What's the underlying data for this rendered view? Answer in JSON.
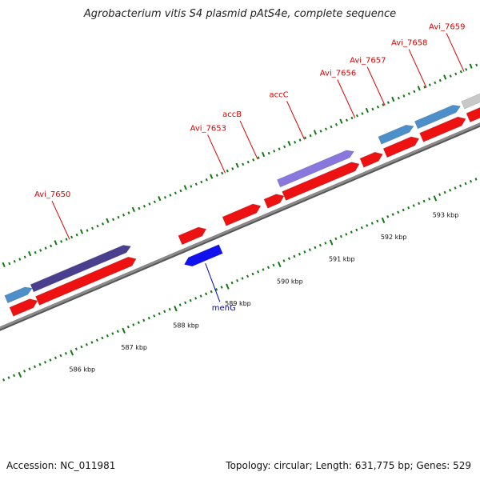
{
  "title": "Agrobacterium vitis S4 plasmid pAtS4e, complete sequence",
  "footer": {
    "accession": "Accession: NC_011981",
    "summary": "Topology: circular; Length: 631,775 bp; Genes: 529"
  },
  "colors": {
    "backbone": "#8a8a8a",
    "cds_forward": "#ee1111",
    "cds_reverse": "#1111ee",
    "label_forward": "#dd0000",
    "label_reverse": "#0000bb",
    "tick": "#117711",
    "cog_dark_purple": "#4a3f8f",
    "cog_light_purple": "#8877dd",
    "cog_steel_blue": "#4d8fc8",
    "cog_gray": "#c8c8c8"
  },
  "chart_data": {
    "type": "genome_map",
    "units": "kbp",
    "view_start_kbp": 585.4,
    "view_end_kbp": 593.9,
    "ruler": [
      {
        "kbp": 586,
        "label": "586 kbp"
      },
      {
        "kbp": 587,
        "label": "587 kbp"
      },
      {
        "kbp": 588,
        "label": "588 kbp"
      },
      {
        "kbp": 589,
        "label": "589 kbp"
      },
      {
        "kbp": 590,
        "label": "590 kbp"
      },
      {
        "kbp": 591,
        "label": "591 kbp"
      },
      {
        "kbp": 592,
        "label": "592 kbp"
      },
      {
        "kbp": 593,
        "label": "593 kbp"
      }
    ],
    "genes": [
      {
        "name": "",
        "strand": "+",
        "start_kbp": 585.3,
        "end_kbp": 585.8,
        "cog": "cog_steel_blue"
      },
      {
        "name": "Avi_7650",
        "strand": "+",
        "start_kbp": 585.8,
        "end_kbp": 587.7,
        "cog": "cog_dark_purple"
      },
      {
        "name": "menG",
        "strand": "-",
        "start_kbp": 588.45,
        "end_kbp": 589.15,
        "cog": ""
      },
      {
        "name": "",
        "strand": "+",
        "start_kbp": 588.55,
        "end_kbp": 589.05,
        "cog": ""
      },
      {
        "name": "accB",
        "strand": "+",
        "start_kbp": 590.2,
        "end_kbp": 590.55,
        "cog": ""
      },
      {
        "name": "accC",
        "strand": "+",
        "start_kbp": 590.55,
        "end_kbp": 592.0,
        "cog": "cog_light_purple"
      },
      {
        "name": "Avi_7653",
        "strand": "+",
        "start_kbp": 589.4,
        "end_kbp": 590.1,
        "cog": ""
      },
      {
        "name": "Avi_7656",
        "strand": "+",
        "start_kbp": 592.05,
        "end_kbp": 592.45,
        "cog": ""
      },
      {
        "name": "Avi_7657",
        "strand": "+",
        "start_kbp": 592.5,
        "end_kbp": 593.15,
        "cog": "cog_steel_blue"
      },
      {
        "name": "Avi_7658",
        "strand": "+",
        "start_kbp": 593.2,
        "end_kbp": 594.05,
        "cog": "cog_steel_blue"
      },
      {
        "name": "Avi_7659",
        "strand": "+",
        "start_kbp": 594.1,
        "end_kbp": 594.6,
        "cog": "cog_gray"
      }
    ]
  }
}
